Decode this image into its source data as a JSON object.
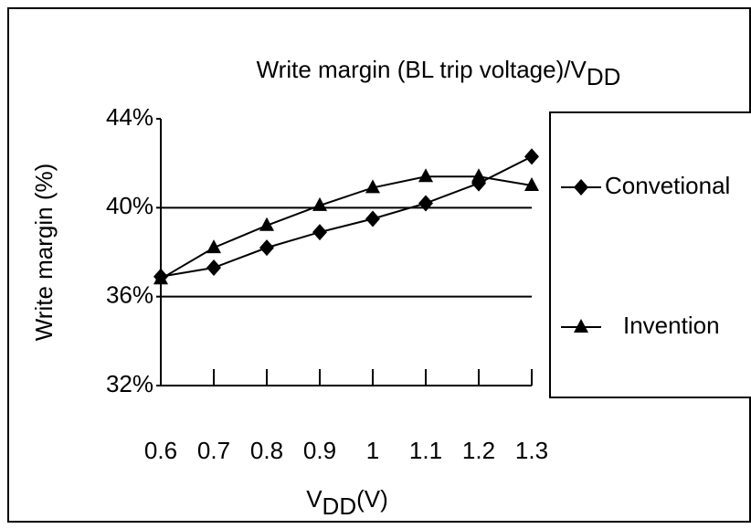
{
  "chart_data": {
    "type": "line",
    "title": {
      "text": "Write margin (BL trip voltage)/V",
      "subscript": "DD"
    },
    "xlabel": {
      "text": "V",
      "subscript": "DD",
      "suffix": "(V)"
    },
    "ylabel": "Write margin (%)",
    "x": [
      0.6,
      0.7,
      0.8,
      0.9,
      1,
      1.1,
      1.2,
      1.3
    ],
    "xlim": [
      0.6,
      1.3
    ],
    "xticks": [
      0.6,
      0.7,
      0.8,
      0.9,
      1,
      1.1,
      1.2,
      1.3
    ],
    "ylim": [
      32,
      44
    ],
    "yticks": [
      {
        "value": 32,
        "label": "32%"
      },
      {
        "value": 36,
        "label": "36%"
      },
      {
        "value": 40,
        "label": "40%"
      },
      {
        "value": 44,
        "label": "44%"
      }
    ],
    "grid": true,
    "legend": "right",
    "series": [
      {
        "name": "Convetional",
        "color": "#000000",
        "marker": "diamond",
        "values": [
          36.9,
          37.3,
          38.2,
          38.9,
          39.5,
          40.2,
          41.1,
          42.3
        ]
      },
      {
        "name": "Invention",
        "color": "#000000",
        "marker": "triangle",
        "values": [
          36.8,
          38.2,
          39.2,
          40.1,
          40.9,
          41.4,
          41.4,
          41.0
        ]
      }
    ]
  }
}
